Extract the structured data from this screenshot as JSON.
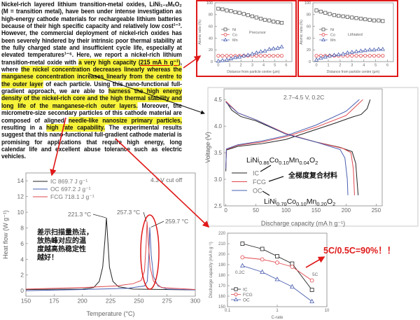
{
  "abstract": {
    "segments": [
      {
        "text": "Nickel-rich layered lithium transition-metal oxides, LiNi₁₋ₓMₓO₂ (M = transition metal), have been under intense investigation as high-energy cathode materials for rechargeable lithium batteries because of their high specific capacity and relatively low cost¹⁻³. However, the commercial deployment of nickel-rich oxides has been severely hindered by their intrinsic poor thermal stability at the fully charged state and insufficient cycle life, especially at elevated temperatures¹⁻⁶. Here, we report a nickel-rich lithium transition-metal oxide with ",
        "highlight": false
      },
      {
        "text": "a very high capacity (",
        "highlight": true
      },
      {
        "text": "215 mA h g⁻¹",
        "highlight": true,
        "underline": true
      },
      {
        "text": ")",
        "highlight": true
      },
      {
        "text": ", where ",
        "highlight": false
      },
      {
        "text": "the nickel concentration decreases linearly whereas the manganese concentration increases linearly from the centre to the outer layer",
        "highlight": true
      },
      {
        "text": " of each particle. Using this nano-functional full-gradient approach, we are able to ",
        "highlight": false
      },
      {
        "text": "harness the high energy density of the nickel-rich core and the high thermal stability and long life of the manganese-rich outer layers.",
        "highlight": true
      },
      {
        "text": " Moreover, the micrometre-size secondary particles of this cathode material are composed of aligned ",
        "highlight": false
      },
      {
        "text": "needle-like nanosize primary particles,",
        "highlight": true
      },
      {
        "text": " resulting in a ",
        "highlight": false
      },
      {
        "text": "high rate capability.",
        "highlight": true
      },
      {
        "text": " The experimental results suggest that this nano-functional full-gradient cathode material is promising for applications that require high energy, long calendar life and excellent abuse tolerance such as electric vehicles.",
        "highlight": false
      }
    ]
  },
  "annotations": {
    "dsc_note": [
      "差示扫描量热法，",
      "放热峰对应的温",
      "度越高热稳定性",
      "越好！"
    ],
    "fcg_note": "全梯度复合材料",
    "rate_note": "5C/0.5C=90%！！",
    "formula_ic": [
      "LiNi",
      "0.86",
      "Co",
      "0.10",
      "Mn",
      "0.04",
      "O",
      "2"
    ],
    "formula_oc": [
      "LiNi",
      "0.70",
      "Co",
      "0.10",
      "Mn",
      "0.20",
      "O",
      "2"
    ],
    "annotation_color": "#e01818",
    "highlight_color": "#f7f33a"
  },
  "colors": {
    "IC": "#222222",
    "FCG": "#e0474c",
    "OC": "#4a5fb0",
    "Ni": "#555555",
    "Co": "#e0474c",
    "Mn": "#4a5fb0"
  },
  "chart_data": [
    {
      "id": "precursor",
      "type": "line",
      "label": "Precursor",
      "xlabel": "Distance from particle centre (μm)",
      "ylabel": "Atomic ratio (%)",
      "xlim": [
        -0.3,
        6.5
      ],
      "ylim": [
        0,
        100
      ],
      "xticks": [
        0,
        1,
        2,
        3,
        4,
        5,
        6
      ],
      "yticks": [
        0,
        20,
        40,
        60,
        80,
        100
      ],
      "x": [
        0,
        0.37,
        0.75,
        1.12,
        1.5,
        1.87,
        2.25,
        2.62,
        3.0,
        3.37,
        3.75,
        4.12,
        4.5,
        4.87,
        5.25,
        5.6
      ],
      "series": [
        {
          "name": "Ni",
          "marker": "square",
          "values": [
            90,
            89,
            87,
            86,
            84,
            83,
            81,
            79,
            77,
            75,
            73,
            71,
            70,
            68,
            67,
            66
          ]
        },
        {
          "name": "Co",
          "marker": "circle",
          "values": [
            10,
            10,
            10,
            10,
            10,
            10,
            10,
            10,
            10,
            10,
            10,
            10,
            10,
            10,
            10,
            10
          ]
        },
        {
          "name": "Mn",
          "marker": "triangle",
          "values": [
            1,
            2,
            3,
            5,
            7,
            8,
            10,
            11,
            13,
            15,
            17,
            18,
            21,
            22,
            23,
            25
          ]
        }
      ]
    },
    {
      "id": "lithiated",
      "type": "line",
      "label": "Lithiated",
      "xlabel": "Distance from particle centre (μm)",
      "ylabel": "Atomic ratio (%)",
      "xlim": [
        -0.3,
        6.5
      ],
      "ylim": [
        0,
        100
      ],
      "xticks": [
        0,
        1,
        2,
        3,
        4,
        5,
        6
      ],
      "yticks": [
        0,
        20,
        40,
        60,
        80,
        100
      ],
      "x": [
        0,
        0.37,
        0.75,
        1.12,
        1.5,
        1.87,
        2.25,
        2.62,
        3.0,
        3.37,
        3.75,
        4.12,
        4.5,
        4.87,
        5.25,
        5.6
      ],
      "series": [
        {
          "name": "Ni",
          "marker": "square",
          "values": [
            87,
            85,
            83,
            81,
            79,
            78,
            77,
            76,
            75,
            74,
            73,
            72,
            71,
            70,
            70,
            69
          ]
        },
        {
          "name": "Co",
          "marker": "circle",
          "values": [
            10,
            10,
            10,
            10,
            10,
            10,
            10,
            10,
            10,
            10,
            10,
            10,
            10,
            10,
            10,
            10
          ]
        },
        {
          "name": "Mn",
          "marker": "triangle",
          "values": [
            3,
            6,
            8,
            10,
            11,
            12,
            13,
            15,
            16,
            17,
            18,
            19,
            20,
            20,
            21,
            21
          ]
        }
      ]
    },
    {
      "id": "voltage",
      "type": "line",
      "label": "2.7–4.5 V, 0.2C",
      "xlabel": "Discharge capacity (mA h g⁻¹)",
      "ylabel": "Voltage (V)",
      "xlim": [
        -3,
        260
      ],
      "ylim": [
        2.5,
        4.7
      ],
      "xticks": [
        0,
        50,
        100,
        150,
        200,
        250
      ],
      "yticks": [
        2.5,
        3.0,
        3.5,
        4.0,
        4.5
      ],
      "series": [
        {
          "name": "IC",
          "charge": [
            [
              0,
              3.15
            ],
            [
              1,
              3.55
            ],
            [
              20,
              3.62
            ],
            [
              60,
              3.67
            ],
            [
              100,
              3.75
            ],
            [
              140,
              3.9
            ],
            [
              180,
              4.05
            ],
            [
              210,
              4.17
            ],
            [
              225,
              4.22
            ],
            [
              235,
              4.33
            ],
            [
              240,
              4.5
            ]
          ],
          "discharge": [
            [
              0,
              4.47
            ],
            [
              10,
              4.3
            ],
            [
              25,
              4.18
            ],
            [
              50,
              4.1
            ],
            [
              100,
              3.85
            ],
            [
              150,
              3.7
            ],
            [
              190,
              3.6
            ],
            [
              210,
              3.52
            ],
            [
              216,
              3.3
            ],
            [
              218,
              3.0
            ],
            [
              220,
              2.7
            ]
          ]
        },
        {
          "name": "FCG",
          "charge": [
            [
              0,
              3.2
            ],
            [
              1,
              3.56
            ],
            [
              20,
              3.64
            ],
            [
              60,
              3.7
            ],
            [
              100,
              3.8
            ],
            [
              150,
              3.98
            ],
            [
              200,
              4.2
            ],
            [
              228,
              4.5
            ]
          ],
          "discharge": [
            [
              0,
              4.47
            ],
            [
              20,
              4.25
            ],
            [
              50,
              4.12
            ],
            [
              100,
              3.86
            ],
            [
              150,
              3.7
            ],
            [
              195,
              3.58
            ],
            [
              208,
              3.5
            ],
            [
              212,
              3.2
            ],
            [
              214,
              2.7
            ]
          ]
        },
        {
          "name": "OC",
          "charge": [
            [
              0,
              3.2
            ],
            [
              1,
              3.57
            ],
            [
              20,
              3.65
            ],
            [
              60,
              3.72
            ],
            [
              100,
              3.82
            ],
            [
              150,
              4.02
            ],
            [
              200,
              4.28
            ],
            [
              222,
              4.5
            ]
          ],
          "discharge": [
            [
              0,
              4.45
            ],
            [
              20,
              4.25
            ],
            [
              50,
              4.12
            ],
            [
              100,
              3.85
            ],
            [
              150,
              3.7
            ],
            [
              190,
              3.56
            ],
            [
              198,
              3.4
            ],
            [
              202,
              3.0
            ],
            [
              203,
              2.7
            ]
          ]
        }
      ]
    },
    {
      "id": "dsc",
      "type": "line",
      "label": "4.3 V cut off",
      "xlabel": "Temperature (°C)",
      "ylabel": "Heat flow (W g⁻¹)",
      "xlim": [
        150,
        300
      ],
      "ylim": [
        -0.7,
        15
      ],
      "xticks": [
        150,
        175,
        200,
        225,
        250,
        275,
        300
      ],
      "yticks": [
        0,
        2,
        4,
        6,
        8,
        10,
        12,
        14
      ],
      "series": [
        {
          "name": "IC",
          "legend": "IC 869.7 J g⁻¹",
          "peak_label": "221.3 °C",
          "points": [
            [
              150,
              0.15
            ],
            [
              200,
              0.2
            ],
            [
              210,
              0.4
            ],
            [
              215,
              1.2
            ],
            [
              218,
              3
            ],
            [
              220,
              6.5
            ],
            [
              221.3,
              9.3
            ],
            [
              222.5,
              6.5
            ],
            [
              224,
              3
            ],
            [
              227,
              1.2
            ],
            [
              232,
              0.5
            ],
            [
              245,
              0.2
            ],
            [
              300,
              0.1
            ]
          ]
        },
        {
          "name": "OC",
          "legend": "OC 697.2 J g⁻¹",
          "peak_label": "259.7 °C",
          "points": [
            [
              150,
              0
            ],
            [
              200,
              0.15
            ],
            [
              240,
              0.3
            ],
            [
              255,
              0.6
            ],
            [
              257.5,
              1.2
            ],
            [
              258.7,
              4
            ],
            [
              259.7,
              8.1
            ],
            [
              261,
              4.5
            ],
            [
              263,
              1.8
            ],
            [
              267,
              0.6
            ],
            [
              275,
              0.2
            ],
            [
              300,
              0.1
            ]
          ]
        },
        {
          "name": "FCG",
          "legend": "FCG 718.1 J g⁻¹",
          "peak_label": "257.3 °C",
          "points": [
            [
              150,
              0.2
            ],
            [
              200,
              0.4
            ],
            [
              230,
              0.6
            ],
            [
              245,
              0.9
            ],
            [
              252,
              1.3
            ],
            [
              255,
              2.5
            ],
            [
              256.5,
              6
            ],
            [
              257.3,
              8.8
            ],
            [
              258.5,
              6
            ],
            [
              260,
              3
            ],
            [
              263,
              1.2
            ],
            [
              270,
              0.4
            ],
            [
              300,
              0.15
            ]
          ]
        }
      ]
    },
    {
      "id": "rate",
      "type": "line",
      "xlabel": "C-rate",
      "ylabel": "Discharge capacity (mA h g⁻¹)",
      "xscale": "log",
      "xlim": [
        0.1,
        10
      ],
      "ylim": [
        150,
        220
      ],
      "xticks": [
        0.1,
        1,
        10
      ],
      "yticks": [
        150,
        160,
        170,
        180,
        190,
        200,
        210,
        220
      ],
      "x": [
        0.2,
        0.5,
        1,
        2,
        5
      ],
      "annotations": [
        "0.2C",
        "5C"
      ],
      "series": [
        {
          "name": "IC",
          "marker": "square",
          "values": [
            210,
            205,
            198,
            191,
            166
          ]
        },
        {
          "name": "FCG",
          "marker": "circle",
          "values": [
            197,
            195,
            192,
            188,
            175
          ]
        },
        {
          "name": "OC",
          "marker": "triangle",
          "values": [
            189,
            183,
            176,
            169,
            155
          ]
        }
      ]
    }
  ]
}
